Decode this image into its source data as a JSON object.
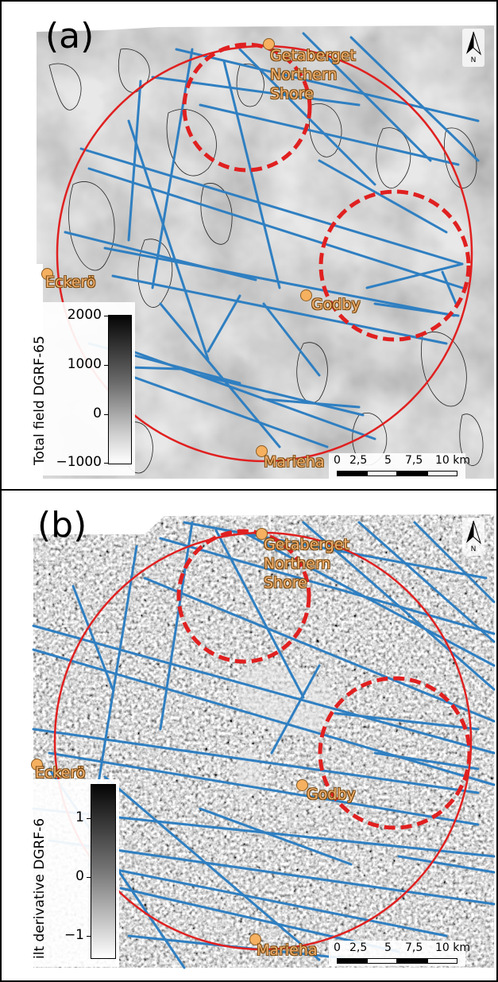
{
  "panels": [
    {
      "label": "(a)",
      "colorbar": {
        "title": "Total field DGRF-65",
        "ticks": [
          "2000",
          "1000",
          "0",
          "−1000"
        ]
      },
      "places": {
        "getaberget": "Getaberget",
        "northern": "Northern",
        "shore": "Shore",
        "eckero": "Eckerö",
        "godby": "Godby",
        "marieha": "Marieha"
      },
      "north_label": "N",
      "scale_labels": [
        "0",
        "2,5",
        "5",
        "7,5",
        "10 km"
      ]
    },
    {
      "label": "(b)",
      "colorbar": {
        "title": "ilt derivative DGRF-6",
        "ticks": [
          "1",
          "0",
          "−1"
        ]
      },
      "places": {
        "getaberget": "Getaberget",
        "northern": "Northern",
        "shore": "Shore",
        "eckero": "Eckerö",
        "godby": "Godby",
        "marieha": "Marieha"
      },
      "north_label": "N",
      "scale_labels": [
        "0",
        "2,5",
        "5",
        "7,5",
        "10 km"
      ]
    }
  ],
  "icons": {
    "north_arrow": "north-arrow-icon",
    "place_marker": "place-marker-icon"
  },
  "colors": {
    "lineaments": "#2f7fc1",
    "circles": "#e02020",
    "place_text": "#f0b070",
    "place_marker": "#f5b060"
  }
}
